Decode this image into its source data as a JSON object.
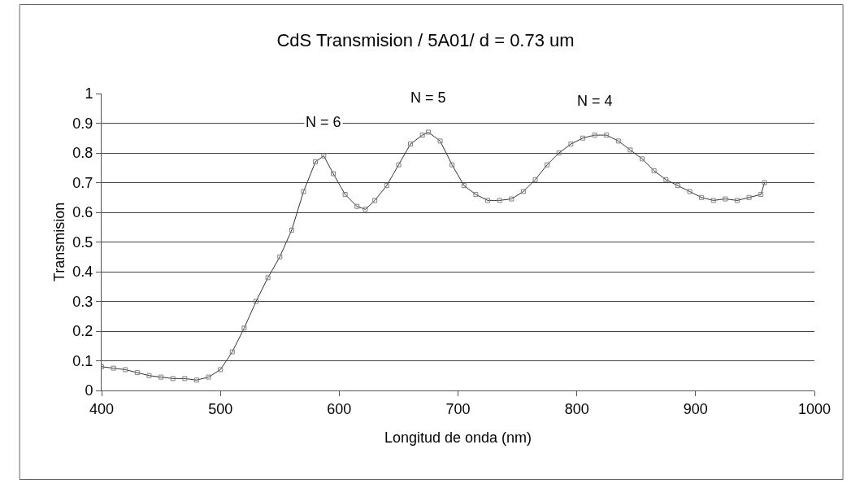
{
  "chart_data": {
    "type": "line",
    "title": "CdS Transmision / 5A01/ d = 0.73 um",
    "xlabel": "Longitud de onda (nm)",
    "ylabel": "Transmision",
    "x": [
      400,
      410,
      420,
      430,
      440,
      450,
      460,
      470,
      480,
      490,
      500,
      510,
      520,
      530,
      540,
      550,
      560,
      570,
      580,
      587,
      595,
      605,
      615,
      622,
      630,
      640,
      650,
      660,
      670,
      675,
      685,
      695,
      705,
      715,
      725,
      735,
      745,
      755,
      765,
      775,
      785,
      795,
      805,
      815,
      825,
      835,
      845,
      855,
      865,
      875,
      885,
      895,
      905,
      915,
      925,
      935,
      945,
      955,
      958
    ],
    "series": [
      {
        "color": "#808080",
        "values": [
          0.08,
          0.075,
          0.07,
          0.06,
          0.05,
          0.045,
          0.04,
          0.04,
          0.035,
          0.045,
          0.07,
          0.13,
          0.21,
          0.3,
          0.38,
          0.45,
          0.54,
          0.67,
          0.77,
          0.79,
          0.73,
          0.66,
          0.62,
          0.61,
          0.64,
          0.69,
          0.76,
          0.83,
          0.86,
          0.87,
          0.84,
          0.76,
          0.69,
          0.66,
          0.64,
          0.64,
          0.645,
          0.67,
          0.71,
          0.76,
          0.8,
          0.83,
          0.85,
          0.86,
          0.86,
          0.84,
          0.81,
          0.78,
          0.74,
          0.71,
          0.69,
          0.67,
          0.65,
          0.64,
          0.645,
          0.64,
          0.65,
          0.66,
          0.7
        ]
      }
    ],
    "annotations": [
      {
        "text": "N = 6",
        "x": 587,
        "y": 0.79
      },
      {
        "text": "N = 5",
        "x": 675,
        "y": 0.87
      },
      {
        "text": "N = 4",
        "x": 815,
        "y": 0.86
      }
    ],
    "xlim": [
      400,
      1000
    ],
    "xticks": [
      400,
      500,
      600,
      700,
      800,
      900,
      1000
    ],
    "ylim": [
      0,
      1
    ],
    "yticks": [
      0,
      0.1,
      0.2,
      0.3,
      0.4,
      0.5,
      0.6,
      0.7,
      0.8,
      0.9,
      1
    ],
    "grid": "y",
    "marker": "square",
    "line_style": "solid"
  }
}
